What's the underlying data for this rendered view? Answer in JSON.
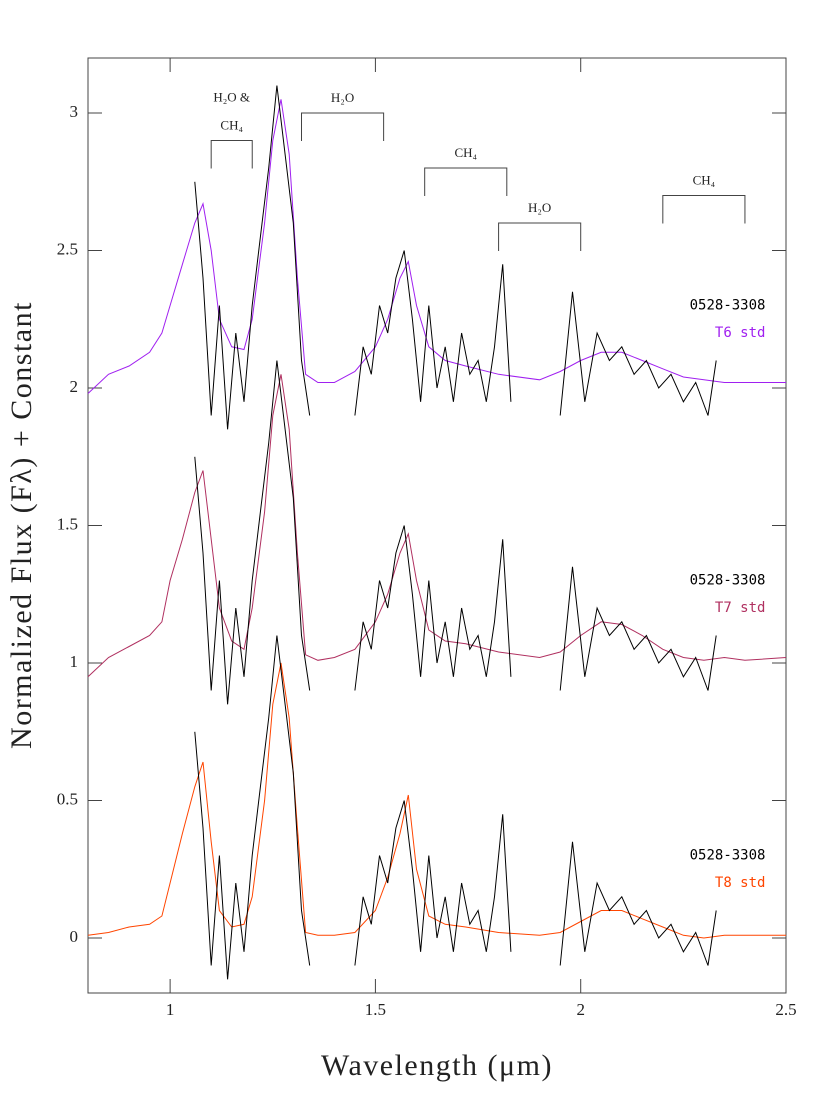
{
  "chart_data": {
    "type": "line",
    "xlabel": "Wavelength (μm)",
    "ylabel": "Normalized Flux (Fλ) + Constant",
    "xlim": [
      0.8,
      2.5
    ],
    "ylim": [
      -0.2,
      3.2
    ],
    "xticks": [
      1,
      1.5,
      2,
      2.5
    ],
    "yticks": [
      0,
      0.5,
      1,
      1.5,
      2,
      2.5,
      3
    ],
    "series": [
      {
        "name": "T6 std",
        "color": "#a020f0",
        "x": [
          0.8,
          0.85,
          0.9,
          0.95,
          0.98,
          1.0,
          1.03,
          1.06,
          1.08,
          1.1,
          1.12,
          1.15,
          1.18,
          1.2,
          1.23,
          1.25,
          1.27,
          1.29,
          1.31,
          1.33,
          1.36,
          1.4,
          1.45,
          1.5,
          1.53,
          1.56,
          1.58,
          1.6,
          1.63,
          1.67,
          1.72,
          1.8,
          1.9,
          1.95,
          2.0,
          2.05,
          2.1,
          2.15,
          2.2,
          2.25,
          2.3,
          2.35,
          2.4,
          2.5
        ],
        "values": [
          1.98,
          2.05,
          2.08,
          2.13,
          2.2,
          2.3,
          2.45,
          2.6,
          2.67,
          2.5,
          2.25,
          2.15,
          2.14,
          2.25,
          2.6,
          2.9,
          3.05,
          2.85,
          2.4,
          2.05,
          2.02,
          2.02,
          2.06,
          2.15,
          2.25,
          2.4,
          2.46,
          2.3,
          2.15,
          2.1,
          2.08,
          2.05,
          2.03,
          2.06,
          2.1,
          2.13,
          2.13,
          2.1,
          2.07,
          2.04,
          2.03,
          2.02,
          2.02,
          2.02
        ]
      },
      {
        "name": "T7 std",
        "color": "#b03060",
        "x": [
          0.8,
          0.85,
          0.9,
          0.95,
          0.98,
          1.0,
          1.03,
          1.06,
          1.08,
          1.1,
          1.12,
          1.15,
          1.18,
          1.2,
          1.23,
          1.25,
          1.27,
          1.29,
          1.31,
          1.33,
          1.36,
          1.4,
          1.45,
          1.5,
          1.53,
          1.56,
          1.58,
          1.6,
          1.63,
          1.67,
          1.72,
          1.8,
          1.9,
          1.95,
          2.0,
          2.05,
          2.1,
          2.15,
          2.2,
          2.25,
          2.3,
          2.35,
          2.4,
          2.5
        ],
        "values": [
          0.95,
          1.02,
          1.06,
          1.1,
          1.15,
          1.3,
          1.45,
          1.62,
          1.7,
          1.45,
          1.2,
          1.08,
          1.05,
          1.2,
          1.55,
          1.9,
          2.05,
          1.85,
          1.4,
          1.03,
          1.01,
          1.02,
          1.05,
          1.15,
          1.25,
          1.4,
          1.47,
          1.3,
          1.12,
          1.08,
          1.07,
          1.04,
          1.02,
          1.04,
          1.1,
          1.15,
          1.14,
          1.1,
          1.05,
          1.02,
          1.01,
          1.02,
          1.01,
          1.02
        ]
      },
      {
        "name": "T8 std",
        "color": "#ff4500",
        "x": [
          0.8,
          0.85,
          0.9,
          0.95,
          0.98,
          1.0,
          1.03,
          1.06,
          1.08,
          1.1,
          1.12,
          1.15,
          1.18,
          1.2,
          1.23,
          1.25,
          1.27,
          1.29,
          1.31,
          1.33,
          1.36,
          1.4,
          1.45,
          1.5,
          1.53,
          1.56,
          1.58,
          1.6,
          1.63,
          1.67,
          1.72,
          1.8,
          1.9,
          1.95,
          2.0,
          2.05,
          2.1,
          2.15,
          2.2,
          2.25,
          2.3,
          2.35,
          2.4,
          2.5
        ],
        "values": [
          0.01,
          0.02,
          0.04,
          0.05,
          0.08,
          0.2,
          0.38,
          0.55,
          0.64,
          0.35,
          0.1,
          0.04,
          0.05,
          0.15,
          0.5,
          0.85,
          1.0,
          0.8,
          0.4,
          0.02,
          0.01,
          0.01,
          0.02,
          0.1,
          0.22,
          0.38,
          0.52,
          0.25,
          0.08,
          0.05,
          0.04,
          0.02,
          0.01,
          0.02,
          0.06,
          0.1,
          0.1,
          0.07,
          0.04,
          0.01,
          0.0,
          0.01,
          0.01,
          0.01
        ]
      },
      {
        "name": "0528-3308",
        "color": "#000000",
        "x": [
          1.06,
          1.08,
          1.1,
          1.12,
          1.14,
          1.16,
          1.18,
          1.2,
          1.22,
          1.24,
          1.26,
          1.28,
          1.3,
          1.32,
          1.34,
          1.4,
          1.45,
          1.47,
          1.49,
          1.51,
          1.53,
          1.55,
          1.57,
          1.59,
          1.61,
          1.63,
          1.65,
          1.67,
          1.69,
          1.71,
          1.73,
          1.75,
          1.77,
          1.79,
          1.81,
          1.83,
          1.9,
          1.95,
          1.98,
          2.01,
          2.04,
          2.07,
          2.1,
          2.13,
          2.16,
          2.19,
          2.22,
          2.25,
          2.28,
          2.31,
          2.33
        ],
        "values": [
          2.75,
          2.4,
          1.9,
          2.3,
          1.85,
          2.2,
          1.95,
          2.3,
          2.55,
          2.8,
          3.1,
          2.85,
          2.6,
          2.1,
          1.9,
          null,
          1.9,
          2.15,
          2.05,
          2.3,
          2.2,
          2.4,
          2.5,
          2.25,
          1.95,
          2.3,
          2.0,
          2.15,
          1.95,
          2.2,
          2.05,
          2.1,
          1.95,
          2.15,
          2.45,
          1.95,
          null,
          1.9,
          2.35,
          1.95,
          2.2,
          2.1,
          2.15,
          2.05,
          2.1,
          2.0,
          2.05,
          1.95,
          2.02,
          1.9,
          2.1
        ]
      },
      {
        "name": "0528-3308",
        "color": "#000000",
        "x": [
          1.06,
          1.08,
          1.1,
          1.12,
          1.14,
          1.16,
          1.18,
          1.2,
          1.22,
          1.24,
          1.26,
          1.28,
          1.3,
          1.32,
          1.34,
          1.4,
          1.45,
          1.47,
          1.49,
          1.51,
          1.53,
          1.55,
          1.57,
          1.59,
          1.61,
          1.63,
          1.65,
          1.67,
          1.69,
          1.71,
          1.73,
          1.75,
          1.77,
          1.79,
          1.81,
          1.83,
          1.9,
          1.95,
          1.98,
          2.01,
          2.04,
          2.07,
          2.1,
          2.13,
          2.16,
          2.19,
          2.22,
          2.25,
          2.28,
          2.31,
          2.33
        ],
        "values": [
          1.75,
          1.4,
          0.9,
          1.3,
          0.85,
          1.2,
          0.95,
          1.3,
          1.55,
          1.8,
          2.1,
          1.85,
          1.6,
          1.1,
          0.9,
          null,
          0.9,
          1.15,
          1.05,
          1.3,
          1.2,
          1.4,
          1.5,
          1.25,
          0.95,
          1.3,
          1.0,
          1.15,
          0.95,
          1.2,
          1.05,
          1.1,
          0.95,
          1.15,
          1.45,
          0.95,
          null,
          0.9,
          1.35,
          0.95,
          1.2,
          1.1,
          1.15,
          1.05,
          1.1,
          1.0,
          1.05,
          0.95,
          1.02,
          0.9,
          1.1
        ]
      },
      {
        "name": "0528-3308",
        "color": "#000000",
        "x": [
          1.06,
          1.08,
          1.1,
          1.12,
          1.14,
          1.16,
          1.18,
          1.2,
          1.22,
          1.24,
          1.26,
          1.28,
          1.3,
          1.32,
          1.34,
          1.4,
          1.45,
          1.47,
          1.49,
          1.51,
          1.53,
          1.55,
          1.57,
          1.59,
          1.61,
          1.63,
          1.65,
          1.67,
          1.69,
          1.71,
          1.73,
          1.75,
          1.77,
          1.79,
          1.81,
          1.83,
          1.9,
          1.95,
          1.98,
          2.01,
          2.04,
          2.07,
          2.1,
          2.13,
          2.16,
          2.19,
          2.22,
          2.25,
          2.28,
          2.31,
          2.33
        ],
        "values": [
          0.75,
          0.4,
          -0.1,
          0.3,
          -0.15,
          0.2,
          -0.05,
          0.3,
          0.55,
          0.8,
          1.1,
          0.85,
          0.6,
          0.1,
          -0.1,
          null,
          -0.1,
          0.15,
          0.05,
          0.3,
          0.2,
          0.4,
          0.5,
          0.25,
          -0.05,
          0.3,
          0.0,
          0.15,
          -0.05,
          0.2,
          0.05,
          0.1,
          -0.05,
          0.15,
          0.45,
          -0.05,
          null,
          -0.1,
          0.35,
          -0.05,
          0.2,
          0.1,
          0.15,
          0.05,
          0.1,
          0.0,
          0.05,
          -0.05,
          0.02,
          -0.1,
          0.1
        ]
      }
    ],
    "bands": [
      {
        "lines": [
          "H₂O &",
          "CH₄"
        ],
        "x": [
          1.1,
          1.2
        ],
        "y": 2.9
      },
      {
        "lines": [
          "H₂O"
        ],
        "x": [
          1.32,
          1.52
        ],
        "y": 3.0
      },
      {
        "lines": [
          "CH₄"
        ],
        "x": [
          1.62,
          1.82
        ],
        "y": 2.8
      },
      {
        "lines": [
          "H₂O"
        ],
        "x": [
          1.8,
          2.0
        ],
        "y": 2.6
      },
      {
        "lines": [
          "CH₄"
        ],
        "x": [
          2.2,
          2.4
        ],
        "y": 2.7
      }
    ],
    "labels": [
      {
        "text": "0528-3308",
        "color": "#000000",
        "x": 2.45,
        "y": 2.3
      },
      {
        "text": "T6 std",
        "color": "#a020f0",
        "x": 2.45,
        "y": 2.2
      },
      {
        "text": "0528-3308",
        "color": "#000000",
        "x": 2.45,
        "y": 1.3
      },
      {
        "text": "T7 std",
        "color": "#b03060",
        "x": 2.45,
        "y": 1.2
      },
      {
        "text": "0528-3308",
        "color": "#000000",
        "x": 2.45,
        "y": 0.3
      },
      {
        "text": "T8 std",
        "color": "#ff4500",
        "x": 2.45,
        "y": 0.2
      }
    ]
  }
}
